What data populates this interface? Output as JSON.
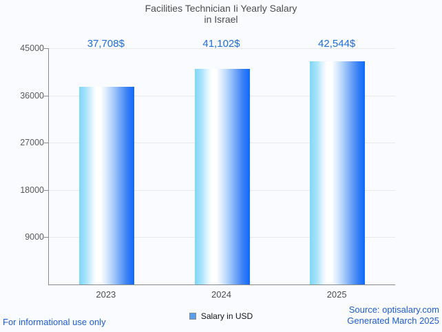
{
  "title": {
    "line1": "Facilities Technician Ii Yearly Salary",
    "line2": "in Israel"
  },
  "chart_data": {
    "type": "bar",
    "title": "Facilities Technician Ii Yearly Salary in Israel",
    "categories": [
      "2023",
      "2024",
      "2025"
    ],
    "values": [
      37708,
      41102,
      42544
    ],
    "value_labels": [
      "37,708$",
      "41,102$",
      "42,544$"
    ],
    "xlabel": "",
    "ylabel": "",
    "ylim": [
      0,
      45000
    ],
    "yticks": [
      9000,
      18000,
      27000,
      36000,
      45000
    ],
    "grid": true,
    "legend_position": "bottom",
    "series_name": "Salary in USD",
    "bar_gradient": [
      "#7fd7fa",
      "#ffffff",
      "#0e69fd"
    ]
  },
  "legend": {
    "label": "Salary in USD",
    "swatch_color": "#58a0e8"
  },
  "footer": {
    "left": "For informational use only",
    "source": "Source: optisalary.com",
    "generated": "Generated March 2025"
  },
  "colors": {
    "value_label_blue": "#1d6ce0",
    "footer_blue": "#1b5cd7",
    "title_gray": "#4c4c4c",
    "axis_gray": "#8a8a8a",
    "gridline_gray": "#e7e8ea",
    "background": "#fafbfe"
  }
}
